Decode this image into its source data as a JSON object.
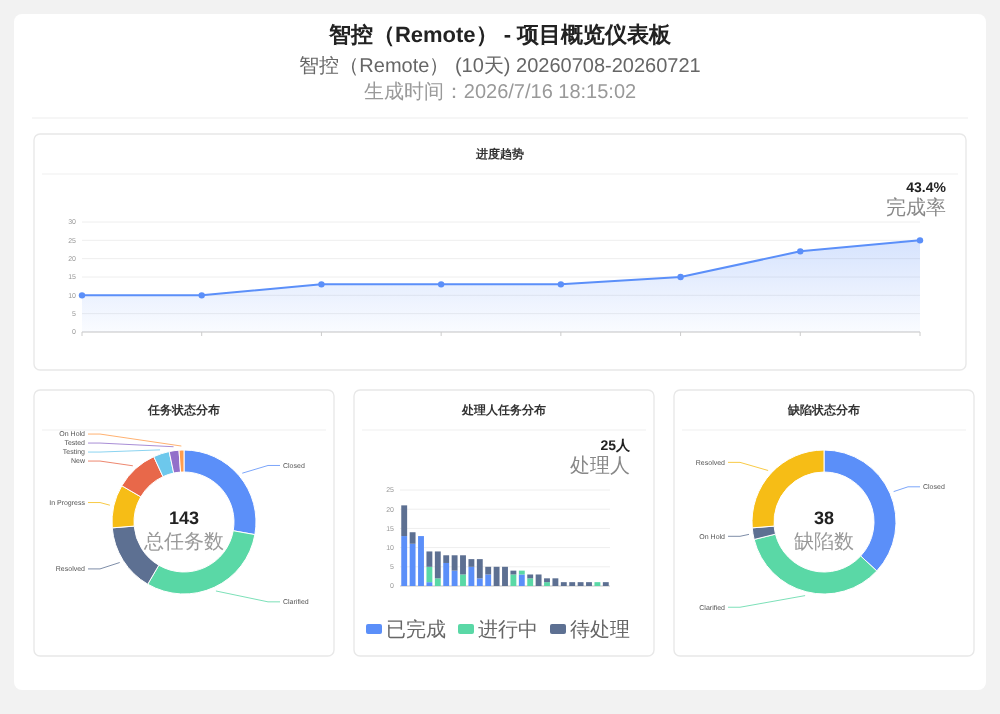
{
  "chart_data": [
    {
      "type": "other",
      "title": "智控（Remote） - 项目概览仪表板",
      "subtitle": "智控（Remote） (10天) 20260708-20260721",
      "annotations": [
        "生成时间：2026/7/16 18:15:02"
      ]
    },
    {
      "type": "area",
      "title": "进度趋势",
      "categories": [
        null,
        null,
        null,
        null,
        null,
        null,
        null,
        null
      ],
      "values": [
        10,
        10,
        13,
        13,
        13,
        15,
        22,
        25
      ],
      "color": "#5b8ff9",
      "ylim": [
        0,
        30
      ],
      "yticks": [
        0,
        5,
        10,
        15,
        20,
        25,
        30
      ],
      "grid": "y",
      "marker": "circle",
      "annotations": [
        "43.4%",
        "完成率"
      ]
    },
    {
      "type": "donut",
      "title": "任务状态分布",
      "categories": [
        "Closed",
        "Clarified",
        "Resolved",
        "In Progress",
        "New",
        "Testing",
        "Tested",
        "On Hold"
      ],
      "values": [
        27.8,
        30.6,
        15.3,
        9.7,
        9.7,
        3.6,
        2.2,
        1.1
      ],
      "colors": [
        "#5b8ff9",
        "#5ad8a6",
        "#5d7092",
        "#f6bd16",
        "#e8684a",
        "#6dc8ec",
        "#9270ca",
        "#ff9d4d"
      ],
      "annotations": [
        "143",
        "总任务数"
      ]
    },
    {
      "type": "bar",
      "title": "处理人任务分布",
      "stacked": true,
      "categories": [
        null,
        null,
        null,
        null,
        null,
        null,
        null,
        null,
        null,
        null,
        null,
        null,
        null,
        null,
        null,
        null,
        null,
        null,
        null,
        null,
        null,
        null,
        null,
        null,
        null
      ],
      "series": [
        {
          "name": "已完成",
          "color": "#5b8ff9",
          "values": [
            13,
            11,
            13,
            1,
            0,
            6,
            4,
            0,
            5,
            2,
            3,
            0,
            0,
            0,
            3,
            0,
            0,
            0,
            0,
            0,
            0,
            0,
            0,
            0,
            0
          ]
        },
        {
          "name": "进行中",
          "color": "#5ad8a6",
          "values": [
            0,
            0,
            0,
            4,
            2,
            0,
            0,
            3,
            0,
            0,
            0,
            0,
            0,
            3,
            1,
            2,
            0,
            1,
            0,
            0,
            0,
            0,
            0,
            1,
            0
          ]
        },
        {
          "name": "待处理",
          "color": "#5d7092",
          "values": [
            8,
            3,
            0,
            4,
            7,
            2,
            4,
            5,
            2,
            5,
            2,
            5,
            5,
            1,
            0,
            1,
            3,
            1,
            2,
            1,
            1,
            1,
            1,
            0,
            1
          ]
        }
      ],
      "ylim": [
        0,
        25
      ],
      "yticks": [
        0,
        5,
        10,
        15,
        20,
        25
      ],
      "grid": "y",
      "legend": "bottom",
      "annotations": [
        "25人",
        "处理人"
      ]
    },
    {
      "type": "donut",
      "title": "缺陷状态分布",
      "categories": [
        "Closed",
        "Clarified",
        "On Hold",
        "Resolved"
      ],
      "values": [
        36.9,
        34.2,
        2.6,
        26.3
      ],
      "colors": [
        "#5b8ff9",
        "#5ad8a6",
        "#5d7092",
        "#f6bd16"
      ],
      "annotations": [
        "38",
        "缺陷数"
      ]
    }
  ]
}
